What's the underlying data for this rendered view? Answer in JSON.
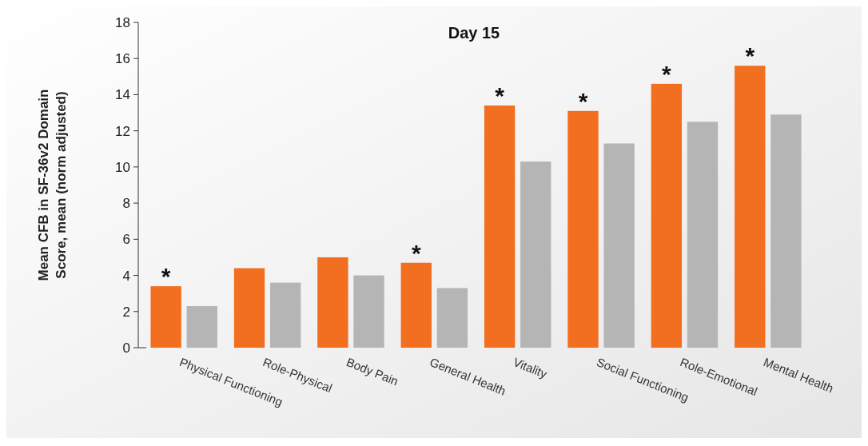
{
  "chart_data": {
    "type": "bar",
    "title": "Day 15",
    "ylabel": "Mean CFB in SF-36v2 Domain Score, mean (norm adjusted)",
    "categories": [
      "Physical Functioning",
      "Role-Physical",
      "Body Pain",
      "General Health",
      "Vitality",
      "Social Functioning",
      "Role-Emotional",
      "Mental Health"
    ],
    "series": [
      {
        "color": "#f26f1f",
        "values": [
          3.4,
          4.4,
          5.0,
          4.7,
          13.4,
          13.1,
          14.6,
          15.6
        ]
      },
      {
        "color": "#b5b5b5",
        "values": [
          2.3,
          3.6,
          4.0,
          3.3,
          10.3,
          11.3,
          12.5,
          12.9
        ]
      }
    ],
    "ylim": [
      0,
      18
    ],
    "yticks": [
      0,
      2,
      4,
      6,
      8,
      10,
      12,
      14,
      16,
      18
    ],
    "grid": false,
    "annotations": [
      {
        "text": "*",
        "x": "Physical Functioning",
        "y": 3.4
      },
      {
        "text": "*",
        "x": "General Health",
        "y": 4.7
      },
      {
        "text": "*",
        "x": "Vitality",
        "y": 13.4
      },
      {
        "text": "*",
        "x": "Social Functioning",
        "y": 13.1
      },
      {
        "text": "*",
        "x": "Role-Emotional",
        "y": 14.6
      },
      {
        "text": "*",
        "x": "Mental Health",
        "y": 15.6
      }
    ]
  }
}
